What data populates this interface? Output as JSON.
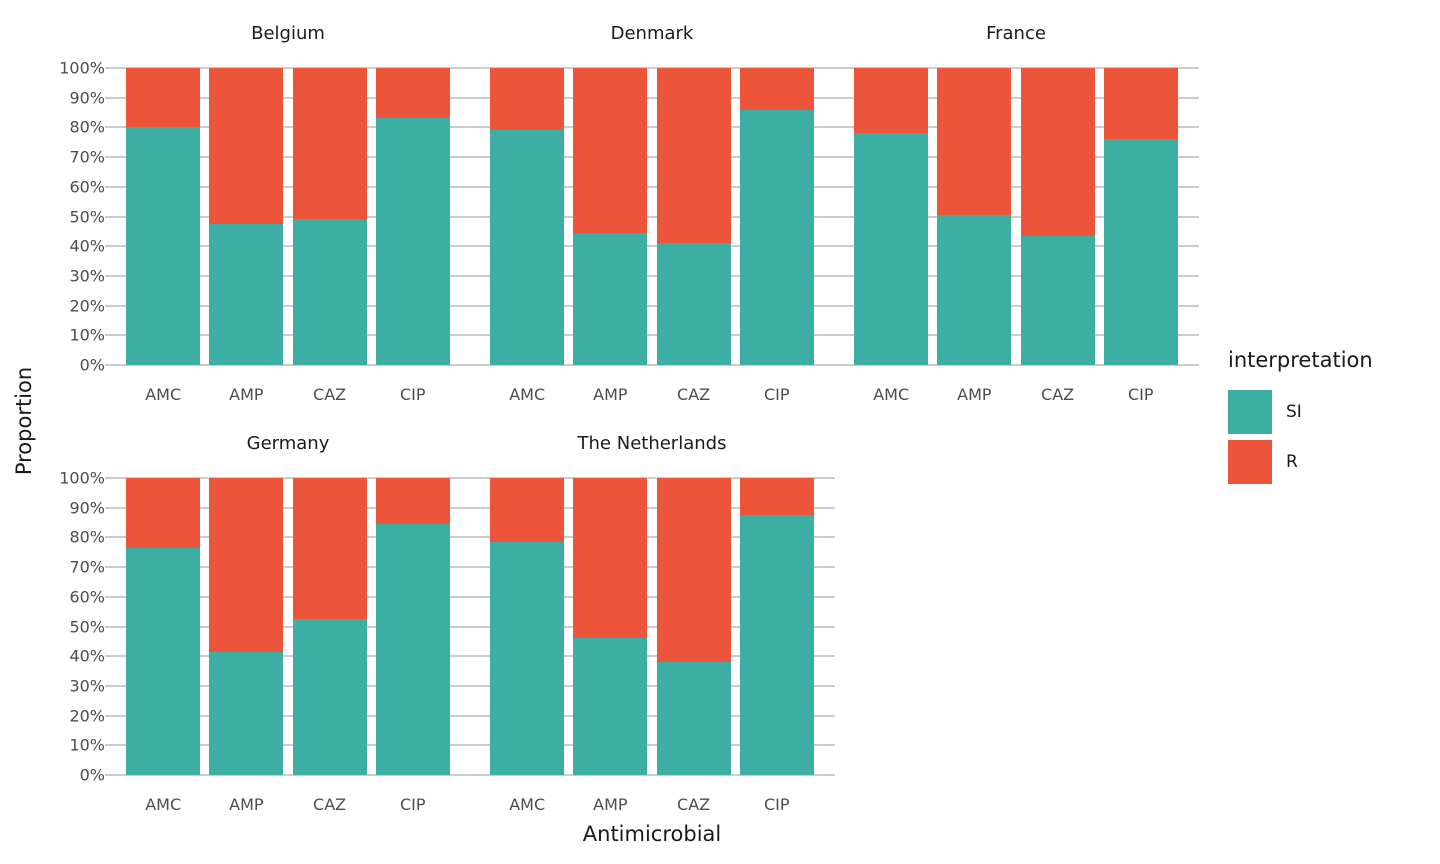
{
  "chart_data": {
    "type": "bar",
    "stacked": true,
    "unit": "percent",
    "title": "",
    "xlabel": "Antimicrobial",
    "ylabel": "Proportion",
    "categories": [
      "AMC",
      "AMP",
      "CAZ",
      "CIP"
    ],
    "y_ticks": [
      0,
      10,
      20,
      30,
      40,
      50,
      60,
      70,
      80,
      90,
      100
    ],
    "y_tick_suffix": "%",
    "ylim": [
      0,
      100
    ],
    "grid": true,
    "legend_position": "right",
    "legend_title": "interpretation",
    "series_meta": [
      {
        "name": "SI",
        "color": "#3CAEA3"
      },
      {
        "name": "R",
        "color": "#ED553B"
      }
    ],
    "facets": [
      {
        "label": "Belgium",
        "row": 0,
        "col": 0,
        "series": {
          "SI": [
            80,
            47.5,
            49,
            83
          ],
          "R": [
            20,
            52.5,
            51,
            17
          ]
        }
      },
      {
        "label": "Denmark",
        "row": 0,
        "col": 1,
        "series": {
          "SI": [
            79,
            44.5,
            41,
            86
          ],
          "R": [
            21,
            55.5,
            59,
            14
          ]
        }
      },
      {
        "label": "France",
        "row": 0,
        "col": 2,
        "series": {
          "SI": [
            78,
            50.5,
            43.5,
            76
          ],
          "R": [
            22,
            49.5,
            56.5,
            24
          ]
        }
      },
      {
        "label": "Germany",
        "row": 1,
        "col": 0,
        "series": {
          "SI": [
            76.5,
            41.5,
            52.5,
            84.5
          ],
          "R": [
            23.5,
            58.5,
            47.5,
            15.5
          ]
        }
      },
      {
        "label": "The Netherlands",
        "row": 1,
        "col": 1,
        "series": {
          "SI": [
            78.5,
            46,
            38,
            87.5
          ],
          "R": [
            21.5,
            54,
            62,
            12.5
          ]
        }
      }
    ]
  },
  "axes": {
    "x_title": "Antimicrobial",
    "y_title": "Proportion"
  },
  "legend": {
    "title": "interpretation",
    "items": [
      {
        "label": "SI",
        "color": "#3CAEA3"
      },
      {
        "label": "R",
        "color": "#ED553B"
      }
    ]
  },
  "colors": {
    "si": "#3CAEA3",
    "r": "#ED553B",
    "gridline": "#cccccc",
    "tick_text": "#4d4d4d",
    "title_text": "#1a1a1a"
  }
}
